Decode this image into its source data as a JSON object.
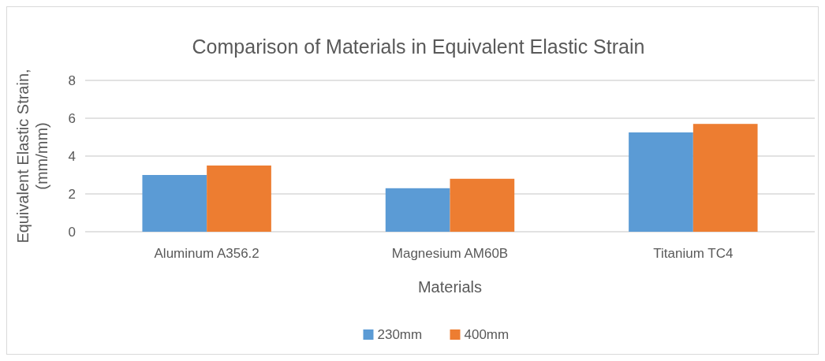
{
  "chart_data": {
    "type": "bar",
    "title": "Comparison of Materials in Equivalent Elastic Strain",
    "xlabel": "Materials",
    "ylabel": "Equivalent Elastic Strain, (mm/mm)",
    "categories": [
      "Aluminum A356.2",
      "Magnesium AM60B",
      "Titanium TC4"
    ],
    "series": [
      {
        "name": "230mm",
        "color": "#5b9bd5",
        "values": [
          3.0,
          2.3,
          5.25
        ]
      },
      {
        "name": "400mm",
        "color": "#ed7d31",
        "values": [
          3.5,
          2.8,
          5.7
        ]
      }
    ],
    "ylim": [
      0,
      8
    ],
    "yticks": [
      0,
      2,
      4,
      6,
      8
    ],
    "grid": "y",
    "legend": "bottom"
  }
}
